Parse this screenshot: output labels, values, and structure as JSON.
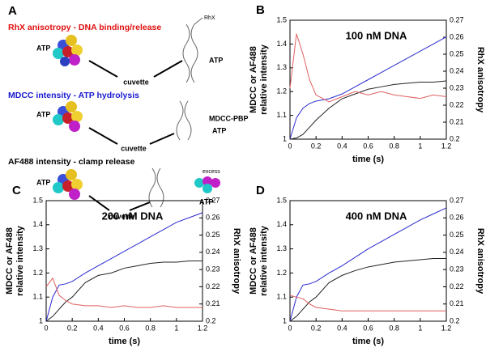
{
  "panel_a": {
    "letter": "A",
    "sections": [
      {
        "heading": "RhX anisotropy - DNA binding/release",
        "left": "ATP",
        "tag": "RhX",
        "right": "ATP",
        "target": "cuvette"
      },
      {
        "heading": "MDCC intensity - ATP hydrolysis",
        "left": "ATP",
        "tag": "MDCC-PBP",
        "right": "ATP",
        "target": "cuvette"
      },
      {
        "heading": "AF488 intensity - clamp release",
        "left": "ATP",
        "tag": "excess",
        "right": "ATP",
        "target": "cuvette"
      }
    ]
  },
  "chart_data": [
    {
      "type": "line",
      "panel": "B",
      "annotation": "100 nM DNA",
      "xlabel": "time (s)",
      "ylabel": [
        "MDCC or AF488",
        "relative intensity"
      ],
      "y2label": "RhX anisotropy",
      "x": [
        0,
        0.05,
        0.1,
        0.15,
        0.2,
        0.3,
        0.4,
        0.5,
        0.6,
        0.7,
        0.8,
        0.9,
        1,
        1.1,
        1.2
      ],
      "xlim": [
        0,
        1.2
      ],
      "xticks": [
        0,
        0.2,
        0.4,
        0.6,
        0.8,
        1,
        1.2
      ],
      "ylim": [
        1,
        1.5
      ],
      "yticks": [
        1,
        1.1,
        1.2,
        1.3,
        1.4,
        1.5
      ],
      "y2lim": [
        0.2,
        0.27
      ],
      "y2ticks": [
        0.2,
        0.21,
        0.22,
        0.23,
        0.24,
        0.25,
        0.26,
        0.27
      ],
      "series": [
        {
          "color": "#2a2ad0",
          "values": [
            1,
            1.09,
            1.13,
            1.15,
            1.16,
            1.17,
            1.19,
            1.22,
            1.25,
            1.28,
            1.31,
            1.34,
            1.37,
            1.4,
            1.43
          ]
        },
        {
          "color": "#222222",
          "values": [
            1,
            1.005,
            1.02,
            1.05,
            1.08,
            1.13,
            1.17,
            1.19,
            1.21,
            1.22,
            1.23,
            1.235,
            1.24,
            1.24,
            1.245
          ]
        },
        {
          "color": "#e06060",
          "axis": "y2",
          "values": [
            0.23,
            0.262,
            0.25,
            0.235,
            0.226,
            0.222,
            0.225,
            0.228,
            0.226,
            0.228,
            0.226,
            0.225,
            0.224,
            0.226,
            0.225
          ]
        }
      ]
    },
    {
      "type": "line",
      "panel": "C",
      "annotation": "200 nM DNA",
      "xlabel": "time (s)",
      "ylabel": [
        "MDCC or AF488",
        "relative intensity"
      ],
      "y2label": "RhX anisotropy",
      "x": [
        0,
        0.05,
        0.1,
        0.15,
        0.2,
        0.3,
        0.4,
        0.5,
        0.6,
        0.7,
        0.8,
        0.9,
        1,
        1.1,
        1.2
      ],
      "xlim": [
        0,
        1.2
      ],
      "xticks": [
        0,
        0.2,
        0.4,
        0.6,
        0.8,
        1,
        1.2
      ],
      "ylim": [
        1,
        1.5
      ],
      "yticks": [
        1,
        1.1,
        1.2,
        1.3,
        1.4,
        1.5
      ],
      "y2lim": [
        0.2,
        0.27
      ],
      "y2ticks": [
        0.2,
        0.21,
        0.22,
        0.23,
        0.24,
        0.25,
        0.26,
        0.27
      ],
      "series": [
        {
          "color": "#2a2ad0",
          "values": [
            1,
            1.1,
            1.15,
            1.155,
            1.165,
            1.2,
            1.23,
            1.26,
            1.29,
            1.32,
            1.35,
            1.38,
            1.41,
            1.43,
            1.45
          ]
        },
        {
          "color": "#222222",
          "values": [
            1,
            1.02,
            1.05,
            1.08,
            1.1,
            1.16,
            1.19,
            1.2,
            1.22,
            1.23,
            1.24,
            1.245,
            1.245,
            1.25,
            1.25
          ]
        },
        {
          "color": "#e06060",
          "axis": "y2",
          "values": [
            0.22,
            0.225,
            0.215,
            0.212,
            0.21,
            0.209,
            0.209,
            0.208,
            0.209,
            0.208,
            0.208,
            0.209,
            0.208,
            0.208,
            0.208
          ]
        }
      ]
    },
    {
      "type": "line",
      "panel": "D",
      "annotation": "400 nM DNA",
      "xlabel": "time (s)",
      "ylabel": [
        "MDCC or AF488",
        "relative intensity"
      ],
      "y2label": "RhX anisotropy",
      "x": [
        0,
        0.05,
        0.1,
        0.15,
        0.2,
        0.3,
        0.4,
        0.5,
        0.6,
        0.7,
        0.8,
        0.9,
        1,
        1.1,
        1.2
      ],
      "xlim": [
        0,
        1.2
      ],
      "xticks": [
        0,
        0.2,
        0.4,
        0.6,
        0.8,
        1,
        1.2
      ],
      "ylim": [
        1,
        1.5
      ],
      "yticks": [
        1,
        1.1,
        1.2,
        1.3,
        1.4,
        1.5
      ],
      "y2lim": [
        0.2,
        0.27
      ],
      "y2ticks": [
        0.2,
        0.21,
        0.22,
        0.23,
        0.24,
        0.25,
        0.26,
        0.27
      ],
      "series": [
        {
          "color": "#2a2ad0",
          "values": [
            1,
            1.1,
            1.15,
            1.155,
            1.165,
            1.2,
            1.23,
            1.265,
            1.3,
            1.33,
            1.36,
            1.39,
            1.42,
            1.445,
            1.47
          ]
        },
        {
          "color": "#222222",
          "values": [
            1,
            1.02,
            1.05,
            1.08,
            1.1,
            1.16,
            1.19,
            1.21,
            1.225,
            1.235,
            1.245,
            1.25,
            1.255,
            1.26,
            1.26
          ]
        },
        {
          "color": "#e06060",
          "axis": "y2",
          "values": [
            0.215,
            0.214,
            0.213,
            0.21,
            0.208,
            0.207,
            0.206,
            0.206,
            0.206,
            0.206,
            0.206,
            0.206,
            0.206,
            0.206,
            0.206
          ]
        }
      ]
    }
  ]
}
